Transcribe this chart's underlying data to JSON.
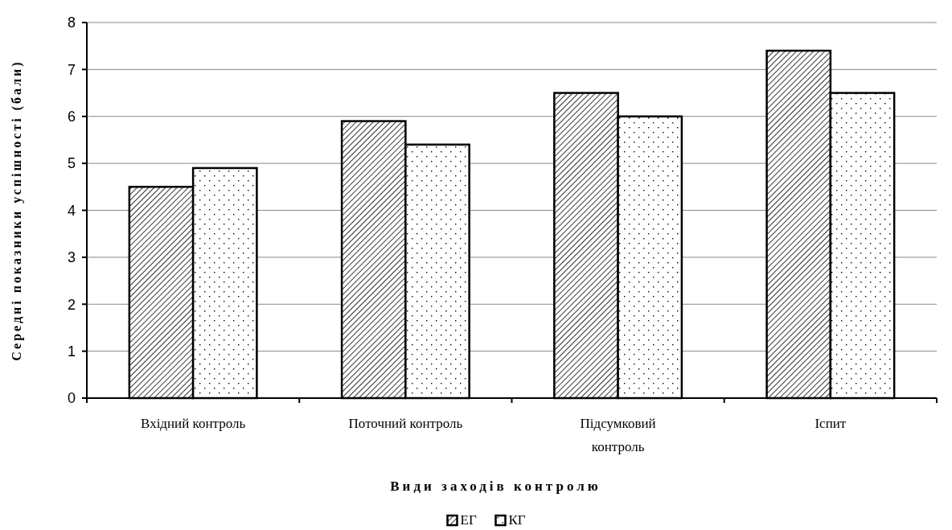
{
  "chart_data": {
    "type": "bar",
    "xlabel": "Види заходів контролю",
    "ylabel": "Середні показники успішності (бали)",
    "categories": [
      "Вхідний контроль",
      "Поточний контроль",
      "Підсумковий контроль",
      "Іспит"
    ],
    "series": [
      {
        "name": "ЕГ",
        "color": "#000000",
        "values": [
          4.5,
          5.9,
          6.5,
          7.4
        ]
      },
      {
        "name": "КГ",
        "color": "#000000",
        "values": [
          4.9,
          5.4,
          6.0,
          6.5
        ]
      }
    ],
    "ylim": [
      0,
      8
    ],
    "yticks": [
      0,
      1,
      2,
      3,
      4,
      5,
      6,
      7,
      8
    ],
    "grid": "y",
    "legend": "bottom"
  }
}
